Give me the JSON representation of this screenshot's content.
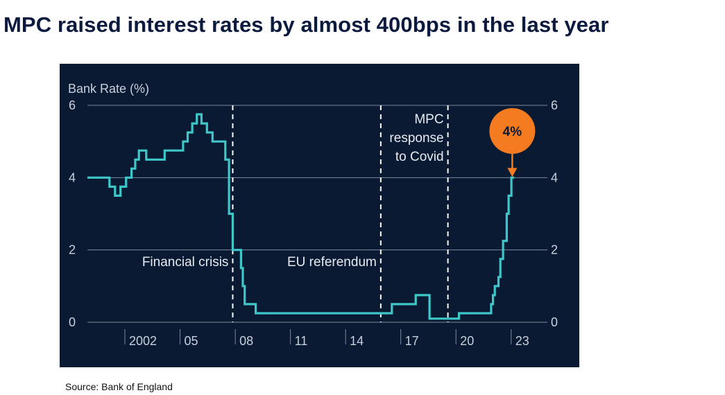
{
  "page": {
    "title": "MPC raised interest rates by almost 400bps in the last year",
    "source": "Source: Bank of England"
  },
  "colors": {
    "title": "#0b1a3e",
    "panel_background": "#0a1a33",
    "line": "#3ec7c9",
    "axis_text": "#c8d0dc",
    "annotation_text": "#e6ebf2",
    "gridline": "#7e8a9c",
    "event_line": "#ffffff",
    "callout_fill": "#f47b20",
    "callout_text": "#0a1a33"
  },
  "chart_data": {
    "type": "line",
    "title": "",
    "ylabel": "Bank Rate (%)",
    "xlabel": "",
    "ylim": [
      0,
      6
    ],
    "xlim": [
      2000.0,
      2023.5
    ],
    "x_tick_labels": [
      "2002",
      "05",
      "08",
      "11",
      "14",
      "17",
      "20",
      "23"
    ],
    "x_tick_values": [
      2002,
      2005,
      2008,
      2011,
      2014,
      2017,
      2020,
      2023
    ],
    "y_ticks": [
      0,
      2,
      4,
      6
    ],
    "y_tick_labels": [
      "0",
      "2",
      "4",
      "6"
    ],
    "grid": "horizontal",
    "series": [
      {
        "name": "",
        "x": [
          2000.0,
          2001.2,
          2001.2,
          2001.5,
          2001.5,
          2001.8,
          2001.8,
          2002.1,
          2002.1,
          2002.4,
          2002.4,
          2002.6,
          2002.6,
          2002.8,
          2002.8,
          2003.0,
          2003.0,
          2003.2,
          2003.2,
          2004.2,
          2004.2,
          2005.2,
          2005.2,
          2005.45,
          2005.45,
          2005.7,
          2005.7,
          2005.95,
          2005.95,
          2006.2,
          2006.2,
          2006.5,
          2006.5,
          2006.8,
          2006.8,
          2007.2,
          2007.2,
          2007.5,
          2007.5,
          2007.7,
          2007.7,
          2007.9,
          2007.9,
          2008.35,
          2008.35,
          2008.45,
          2008.45,
          2008.55,
          2008.55,
          2008.65,
          2008.65,
          2008.75,
          2008.75,
          2008.85,
          2008.85,
          2008.95,
          2008.95,
          2009.05,
          2009.05,
          2009.15,
          2009.15,
          2016.55,
          2016.55,
          2017.85,
          2017.85,
          2018.6,
          2018.6,
          2020.15,
          2020.15,
          2020.2,
          2020.2,
          2021.95,
          2021.95,
          2022.05,
          2022.05,
          2022.15,
          2022.15,
          2022.35,
          2022.35,
          2022.45,
          2022.45,
          2022.6,
          2022.6,
          2022.8,
          2022.8,
          2022.9,
          2022.9,
          2023.05,
          2023.05,
          2023.1,
          2023.1,
          2023.2
        ],
        "y": [
          4.0,
          4.0,
          3.75,
          3.75,
          3.5,
          3.5,
          3.75,
          3.75,
          4.0,
          4.0,
          4.25,
          4.25,
          4.5,
          4.5,
          4.75,
          4.75,
          4.75,
          4.75,
          4.5,
          4.5,
          4.75,
          4.75,
          5.0,
          5.0,
          5.25,
          5.25,
          5.5,
          5.5,
          5.75,
          5.75,
          5.5,
          5.5,
          5.25,
          5.25,
          5.0,
          5.0,
          5.0,
          5.0,
          4.5,
          4.5,
          3.0,
          3.0,
          2.0,
          2.0,
          1.5,
          1.5,
          1.0,
          1.0,
          0.5,
          0.5,
          0.5,
          0.5,
          0.5,
          0.5,
          0.5,
          0.5,
          0.5,
          0.5,
          0.5,
          0.5,
          0.25,
          0.25,
          0.5,
          0.5,
          0.75,
          0.75,
          0.1,
          0.1,
          0.1,
          0.1,
          0.25,
          0.25,
          0.5,
          0.5,
          0.75,
          0.75,
          1.0,
          1.0,
          1.25,
          1.25,
          1.75,
          1.75,
          2.25,
          2.25,
          3.0,
          3.0,
          3.5,
          3.5,
          4.0,
          4.0,
          4.0,
          4.0
        ]
      }
    ],
    "event_lines": [
      {
        "x": 2007.9,
        "label": "Financial crisis"
      },
      {
        "x": 2015.95,
        "label": "EU referendum"
      },
      {
        "x": 2019.6,
        "label_lines": [
          "MPC",
          "response",
          "to Covid"
        ]
      }
    ],
    "callout": {
      "x": 2023.1,
      "y": 4.0,
      "label": "4%"
    }
  }
}
